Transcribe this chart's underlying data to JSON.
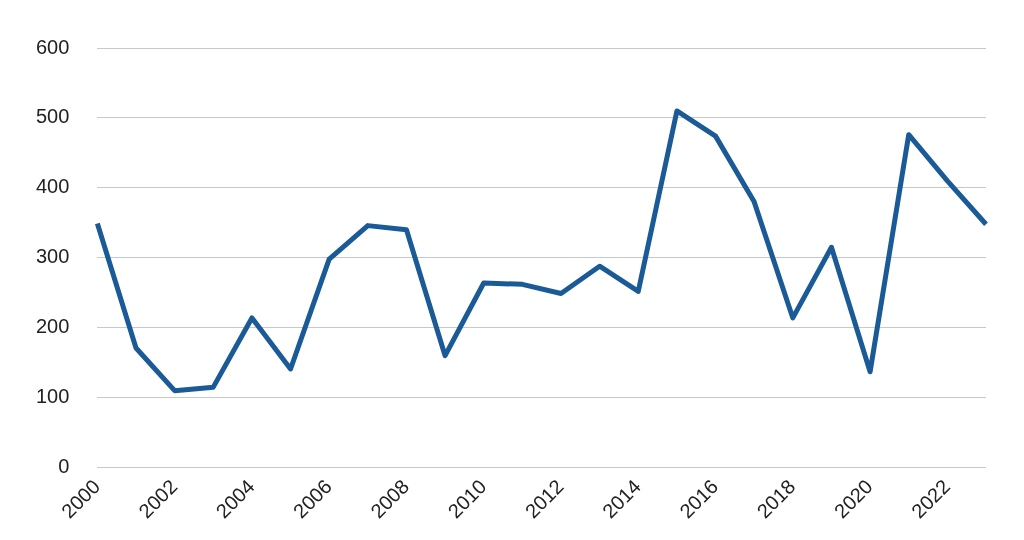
{
  "chart_data": {
    "type": "line",
    "categories": [
      "2000",
      null,
      "2002",
      null,
      "2004",
      null,
      "2006",
      null,
      "2008",
      null,
      "2010",
      null,
      "2012",
      null,
      "2014",
      null,
      "2016",
      null,
      "2018",
      null,
      "2020",
      null,
      "2022",
      null
    ],
    "series": [
      {
        "color": "#1a5a96",
        "values": [
          349,
          171,
          110,
          115,
          214,
          141,
          298,
          346,
          340,
          160,
          264,
          262,
          249,
          288,
          252,
          510,
          474,
          380,
          214,
          315,
          137,
          476,
          410,
          348
        ]
      }
    ],
    "ylim": [
      0,
      600
    ],
    "yticks": [
      0,
      100,
      200,
      300,
      400,
      500,
      600
    ],
    "grid": "y",
    "legend": false,
    "marker": "none",
    "line_style": "solid"
  }
}
